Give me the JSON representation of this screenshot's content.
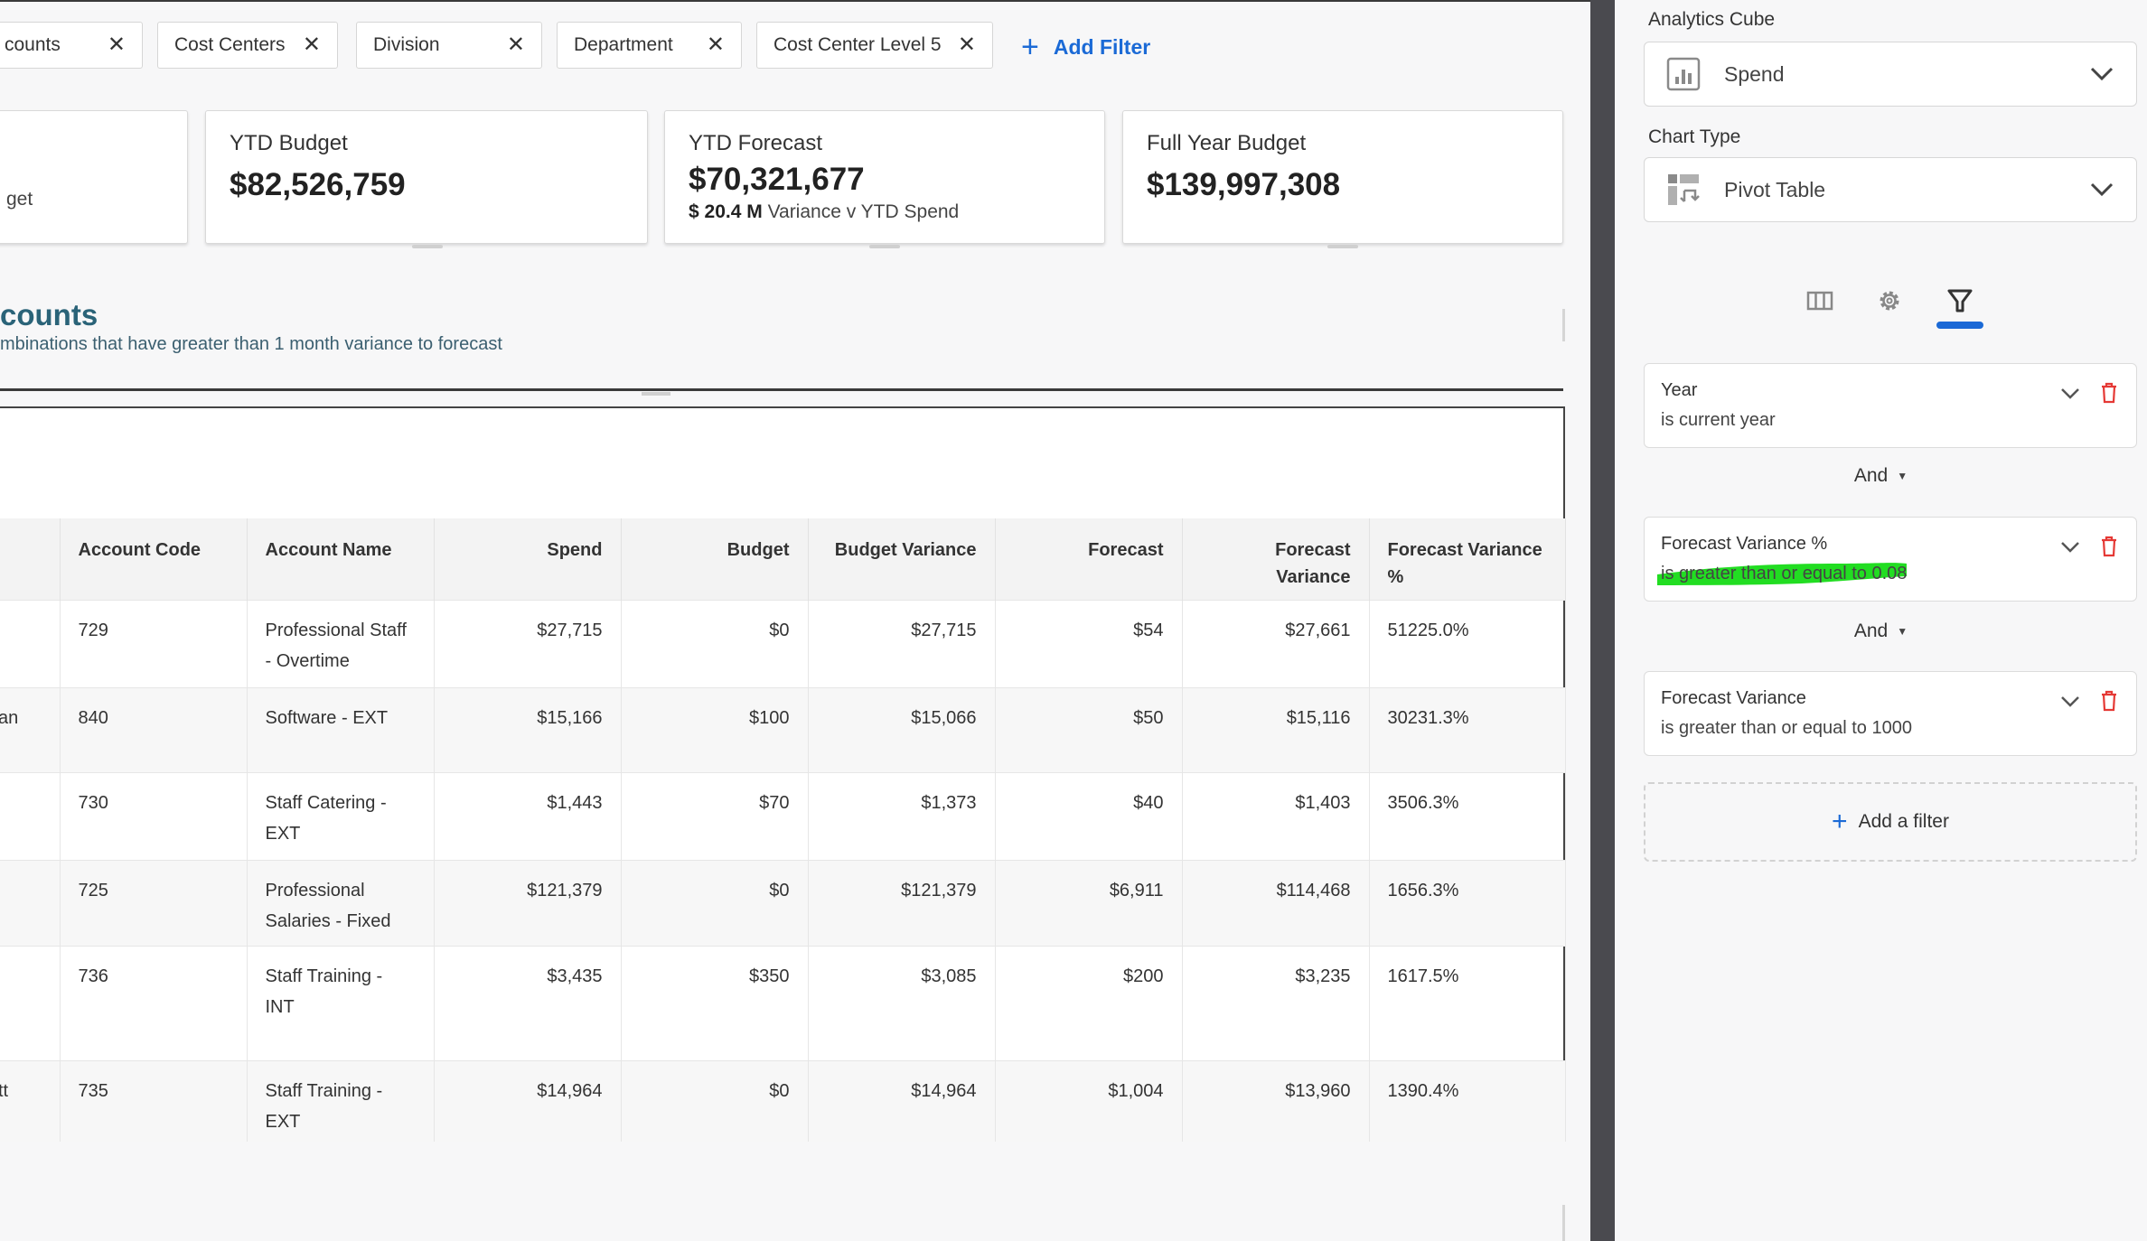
{
  "filters": {
    "chips": [
      "counts",
      "Cost Centers",
      "Division",
      "Department",
      "Cost Center Level 5"
    ],
    "add_label": "Add Filter"
  },
  "kpis": [
    {
      "label": "",
      "value": "",
      "sub": "get"
    },
    {
      "label": "YTD Budget",
      "value": "$82,526,759"
    },
    {
      "label": "YTD Forecast",
      "value": "$70,321,677",
      "sub_bold": "$ 20.4 M",
      "sub": "Variance v YTD Spend"
    },
    {
      "label": "Full Year Budget",
      "value": "$139,997,308"
    }
  ],
  "section": {
    "title": "counts",
    "subtitle": "mbinations that have greater than 1 month variance to forecast"
  },
  "table": {
    "headers": [
      "Account Code",
      "Account Name",
      "Spend",
      "Budget",
      "Budget Variance",
      "Forecast",
      "Forecast Variance",
      "Forecast Variance %"
    ],
    "rows": [
      {
        "lead": "",
        "code": "729",
        "name": "Professional Staff - Overtime",
        "spend": "$27,715",
        "budget": "$0",
        "bvar": "$27,715",
        "fc": "$54",
        "fvar": "$27,661",
        "fpct": "51225.0%"
      },
      {
        "lead": "an",
        "code": "840",
        "name": "Software - EXT",
        "spend": "$15,166",
        "budget": "$100",
        "bvar": "$15,066",
        "fc": "$50",
        "fvar": "$15,116",
        "fpct": "30231.3%"
      },
      {
        "lead": "",
        "code": "730",
        "name": "Staff Catering - EXT",
        "spend": "$1,443",
        "budget": "$70",
        "bvar": "$1,373",
        "fc": "$40",
        "fvar": "$1,403",
        "fpct": "3506.3%"
      },
      {
        "lead": "",
        "code": "725",
        "name": "Professional Salaries - Fixed",
        "spend": "$121,379",
        "budget": "$0",
        "bvar": "$121,379",
        "fc": "$6,911",
        "fvar": "$114,468",
        "fpct": "1656.3%"
      },
      {
        "lead": "",
        "code": "736",
        "name": "Staff Training - INT",
        "spend": "$3,435",
        "budget": "$350",
        "bvar": "$3,085",
        "fc": "$200",
        "fvar": "$3,235",
        "fpct": "1617.5%"
      },
      {
        "lead": "tt",
        "code": "735",
        "name": "Staff Training - EXT",
        "spend": "$14,964",
        "budget": "$0",
        "bvar": "$14,964",
        "fc": "$1,004",
        "fvar": "$13,960",
        "fpct": "1390.4%"
      }
    ]
  },
  "panel": {
    "cube_label": "Analytics Cube",
    "cube_value": "Spend",
    "chart_label": "Chart Type",
    "chart_value": "Pivot Table",
    "active_tab": "filter",
    "filter_cards": [
      {
        "title": "Year",
        "desc": "is current year"
      },
      {
        "title": "Forecast Variance %",
        "desc": "is greater than or equal to 0.08"
      },
      {
        "title": "Forecast Variance",
        "desc": "is greater than or equal to 1000"
      }
    ],
    "and_label": "And",
    "add_filter_label": "Add a filter",
    "accent": "#1b6ad6",
    "delete_color": "#e53935",
    "highlight_color": "#22dd22"
  }
}
